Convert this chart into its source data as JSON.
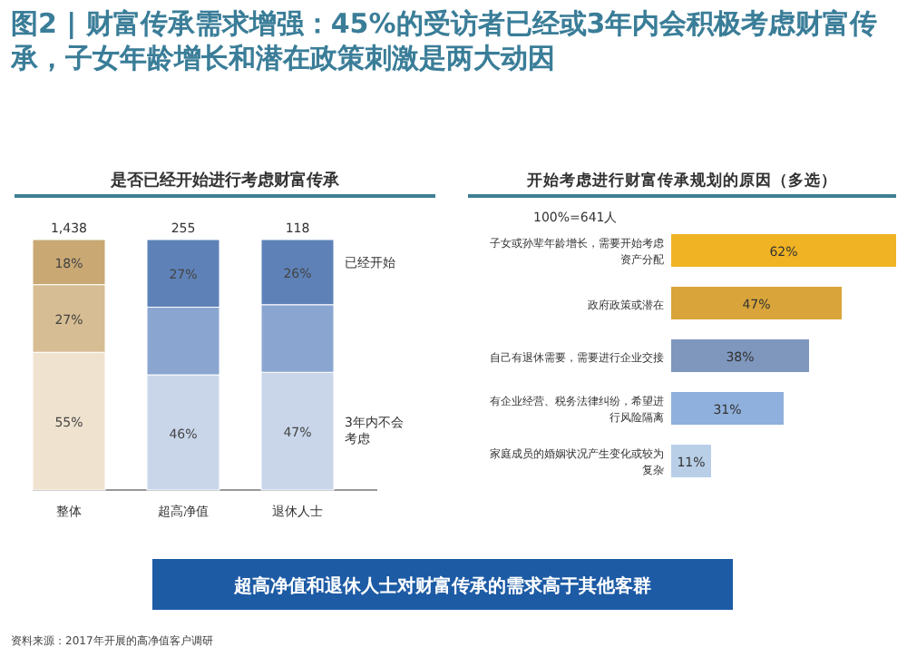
{
  "chart_data": [
    {
      "type": "bar",
      "stacked": true,
      "title": "是否已经开始进行考虑财富传承",
      "categories": [
        "整体",
        "超高净值",
        "退休人士"
      ],
      "annotations": [
        {
          "text": "1,438",
          "x": "整体",
          "y": 100
        },
        {
          "text": "255",
          "x": "超高净值",
          "y": 100
        },
        {
          "text": "118",
          "x": "退休人士",
          "y": 100
        },
        "图2 | 财富传承需求增强：45%的受访者已经或3年内会积极考虑财富传承，子女年龄增长和潜在政策刺激是两大动因",
        "超高净值和退休人士对财富传承的需求高于其他客群",
        "资料来源：2017年开展的高净值客户调研"
      ],
      "series": [
        {
          "name": "3年内不会考虑",
          "colors": [
            "#efe3cf",
            "#c9d6ea",
            "#c9d6ea"
          ],
          "values": [
            55,
            46,
            47
          ],
          "value_labels": [
            "55%",
            "46%",
            "47%"
          ]
        },
        {
          "colors": [
            "#d6bd93",
            "#8aa6d0",
            "#8aa6d0"
          ],
          "values": [
            27,
            27,
            27
          ],
          "value_labels": [
            "27%",
            null,
            null
          ]
        },
        {
          "name": "已经开始",
          "colors": [
            "#c9a873",
            "#5e82b8",
            "#5e82b8"
          ],
          "values": [
            18,
            27,
            26
          ],
          "value_labels": [
            "18%",
            "27%",
            "26%"
          ]
        }
      ]
    },
    {
      "type": "bar",
      "orientation": "horizontal",
      "title": "开始考虑进行财富传承规划的原因（多选）",
      "subtitle": "100%=641人",
      "categories": [
        "子女或孙辈年龄增长，需要开始考虑资产分配",
        "政府政策或潜在",
        "自己有退休需要，需要进行企业交接",
        "有企业经营、税务法律纠纷，希望进行风险隔离",
        "家庭成员的婚姻状况产生变化或较为复杂"
      ],
      "values": [
        62,
        47,
        38,
        31,
        11
      ],
      "value_labels": [
        "62%",
        "47%",
        "38%",
        "31%",
        "11%"
      ],
      "colors": [
        "#f0b323",
        "#d9a53a",
        "#7f97bd",
        "#8fb0dc",
        "#b9cfe8"
      ]
    }
  ]
}
